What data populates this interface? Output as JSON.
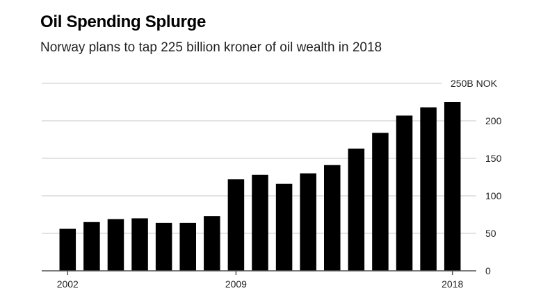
{
  "chart_data": {
    "type": "bar",
    "title": "Oil Spending Splurge",
    "subtitle": "Norway plans to tap 225 billion kroner of oil wealth in 2018",
    "categories": [
      "2002",
      "2003",
      "2004",
      "2005",
      "2006",
      "2007",
      "2008",
      "2009",
      "2010",
      "2011",
      "2012",
      "2013",
      "2014",
      "2015",
      "2016",
      "2017",
      "2018"
    ],
    "values": [
      56,
      65,
      69,
      70,
      64,
      64,
      73,
      122,
      128,
      116,
      130,
      141,
      163,
      184,
      207,
      218,
      225
    ],
    "xlabel": "",
    "ylabel": "B NOK",
    "ylim": [
      0,
      250
    ],
    "yticks": [
      0,
      50,
      100,
      150,
      200,
      250
    ],
    "ytick_labels": [
      "0",
      "50",
      "100",
      "150",
      "200",
      "250B NOK"
    ],
    "xtick_labels": [
      "2002",
      "2009",
      "2018"
    ],
    "grid": true,
    "bar_color": "#000000",
    "grid_color": "#e3e3e3"
  }
}
